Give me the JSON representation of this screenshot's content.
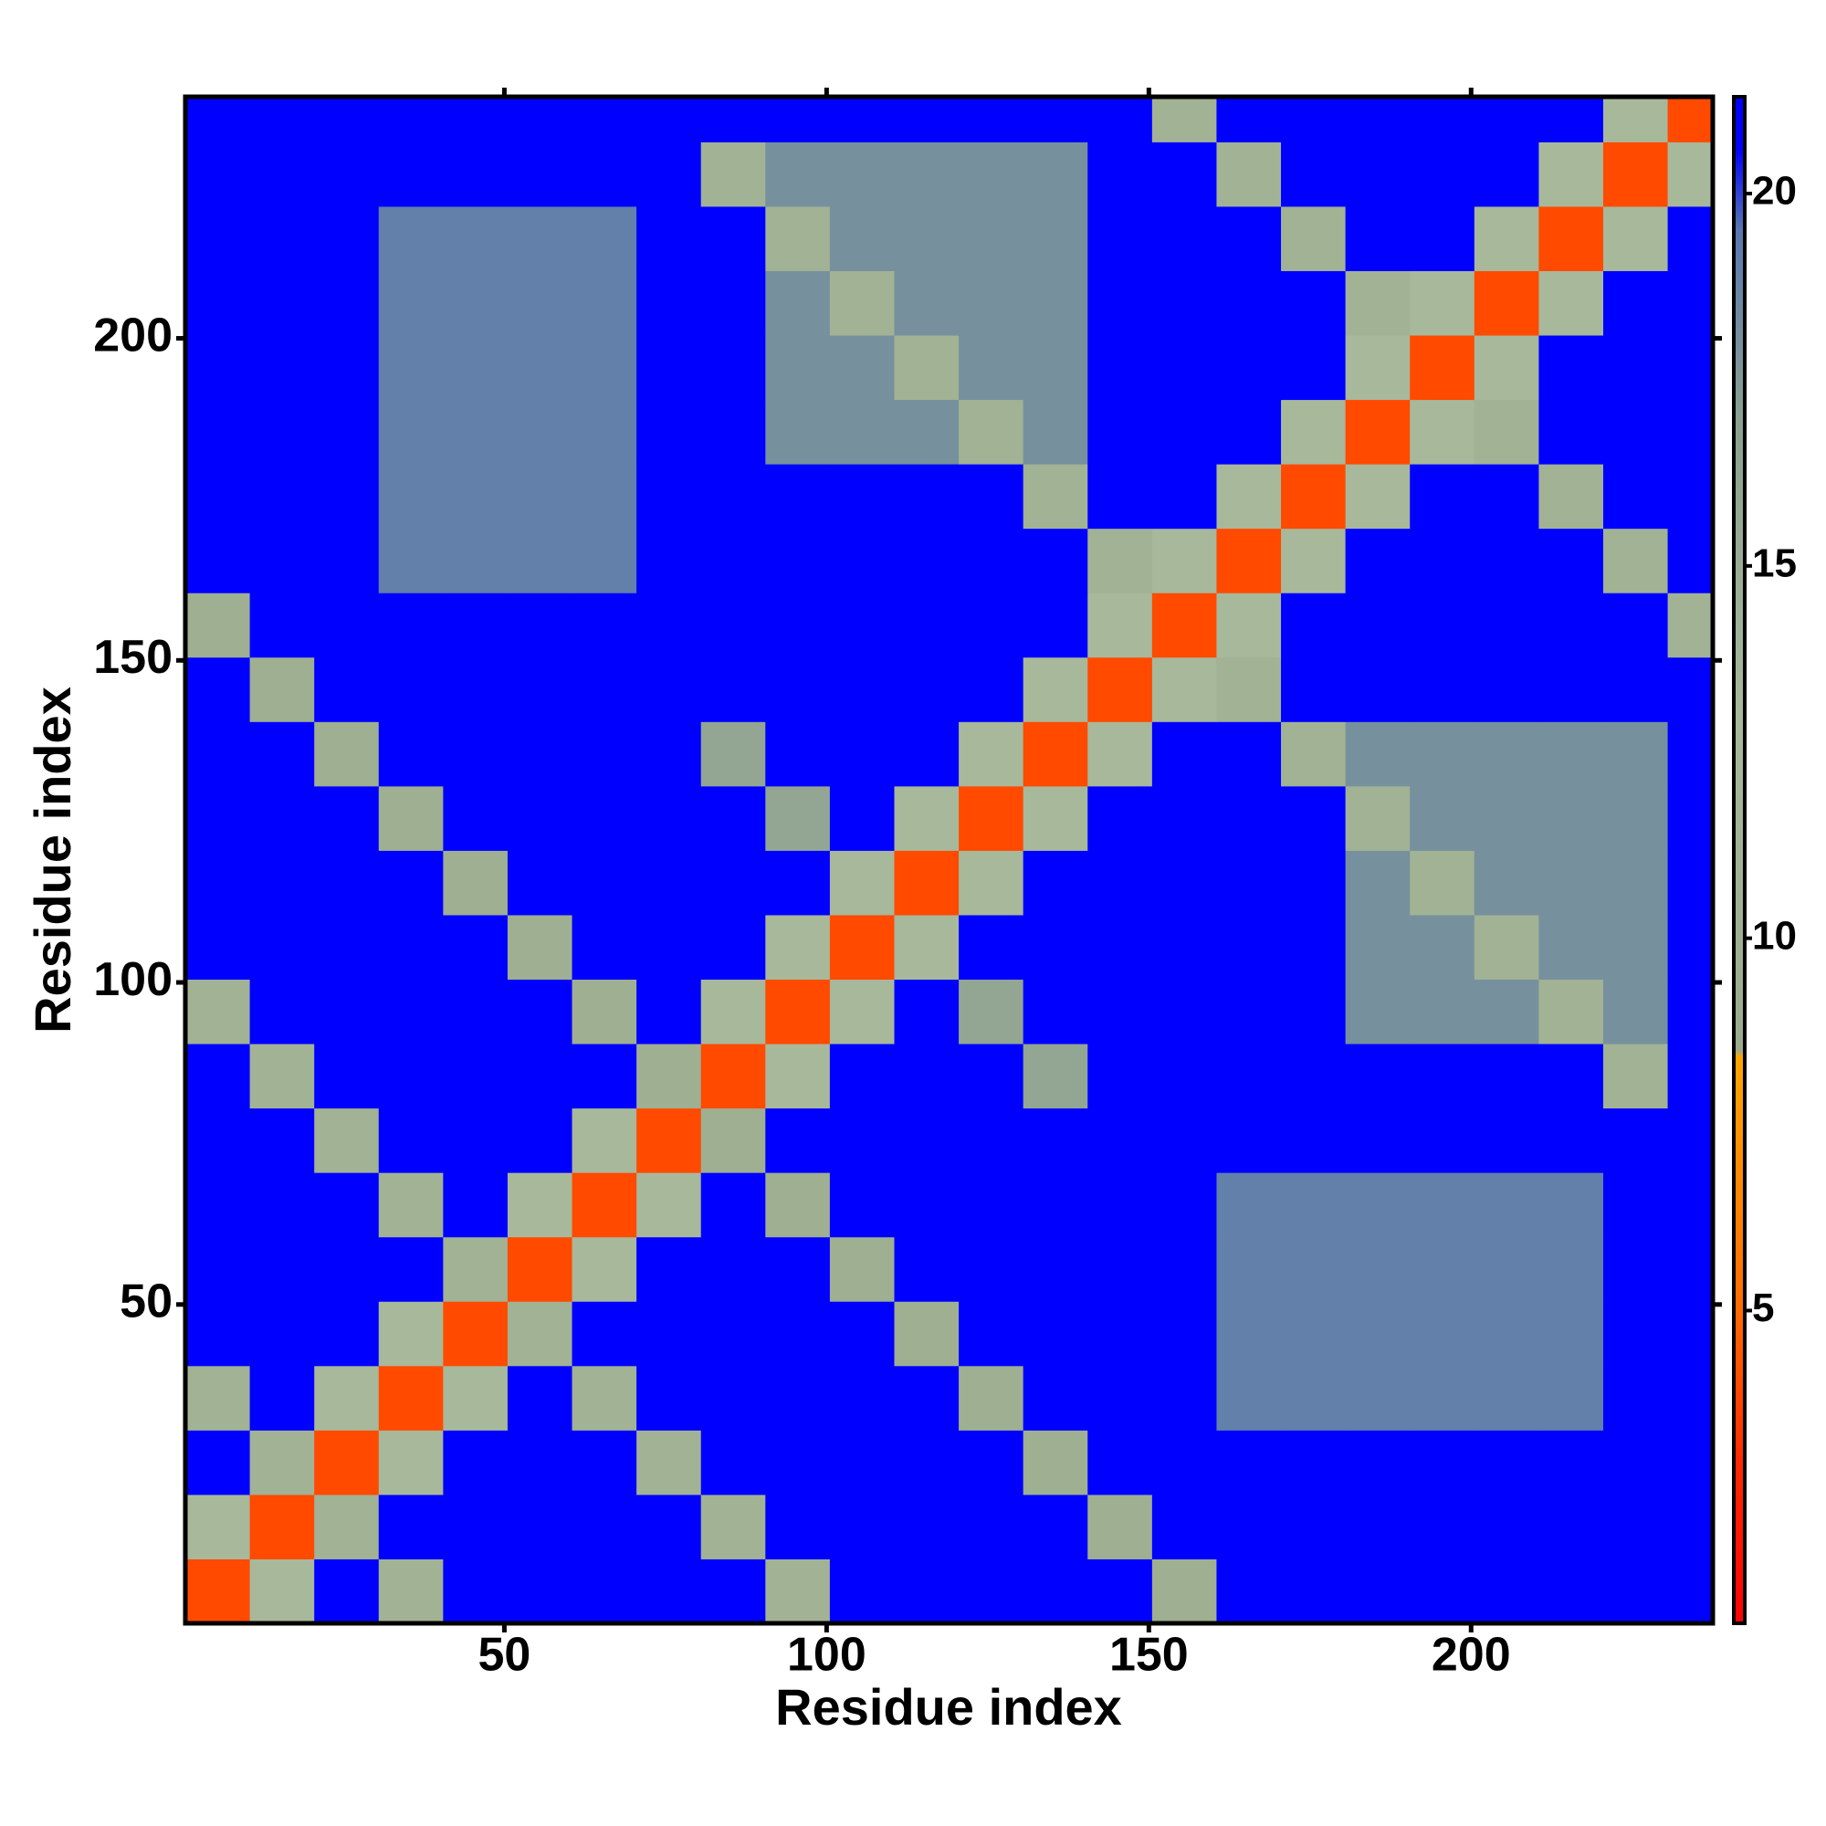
{
  "chart_data": {
    "type": "heatmap",
    "xlabel": "Residue index",
    "ylabel": "Residue index",
    "xlim": [
      0.5,
      237.5
    ],
    "ylim": [
      0.5,
      237.5
    ],
    "xticks": [
      50,
      100,
      150,
      200
    ],
    "yticks": [
      50,
      100,
      150,
      200
    ],
    "x": [
      5.5,
      15.5,
      25.5,
      35.5,
      45.5,
      55.5,
      65.5,
      75.5,
      85.5,
      95.5,
      105.5,
      115.5,
      125.5,
      135.5,
      145.5,
      155.5,
      165.5,
      175.5,
      185.5,
      195.5,
      205.5,
      215.5,
      225.5,
      235.5
    ],
    "y": [
      5.5,
      15.5,
      25.5,
      35.5,
      45.5,
      55.5,
      65.5,
      75.5,
      85.5,
      95.5,
      105.5,
      115.5,
      125.5,
      135.5,
      145.5,
      155.5,
      165.5,
      175.5,
      185.5,
      195.5,
      205.5,
      215.5,
      225.5,
      235.5
    ],
    "z": [
      [
        4,
        13,
        21,
        11,
        21,
        21,
        21,
        21,
        21,
        11,
        21,
        21,
        21,
        21,
        21,
        10,
        21,
        21,
        21,
        21,
        21,
        21,
        21,
        21
      ],
      [
        13,
        4,
        11,
        21,
        21,
        21,
        21,
        21,
        11,
        21,
        21,
        21,
        21,
        21,
        10,
        21,
        21,
        21,
        21,
        21,
        21,
        21,
        21,
        21
      ],
      [
        21,
        11,
        4,
        13,
        21,
        21,
        21,
        11,
        21,
        21,
        21,
        21,
        21,
        10,
        21,
        21,
        21,
        21,
        21,
        21,
        21,
        21,
        21,
        21
      ],
      [
        11,
        21,
        13,
        4,
        13,
        21,
        11,
        21,
        21,
        21,
        21,
        21,
        10,
        21,
        21,
        21,
        19,
        19,
        19,
        19,
        19,
        19,
        21,
        21
      ],
      [
        21,
        21,
        21,
        13,
        4,
        11,
        21,
        21,
        21,
        21,
        21,
        10,
        21,
        21,
        21,
        21,
        19,
        19,
        19,
        19,
        19,
        19,
        21,
        21
      ],
      [
        21,
        21,
        21,
        21,
        11,
        4,
        13,
        21,
        21,
        21,
        10,
        21,
        21,
        21,
        21,
        21,
        19,
        19,
        19,
        19,
        19,
        19,
        21,
        21
      ],
      [
        21,
        21,
        21,
        11,
        21,
        13,
        4,
        13,
        21,
        10,
        21,
        21,
        21,
        21,
        21,
        21,
        19,
        19,
        19,
        19,
        19,
        19,
        21,
        21
      ],
      [
        21,
        21,
        11,
        21,
        21,
        21,
        13,
        4,
        10,
        21,
        21,
        21,
        21,
        21,
        21,
        21,
        21,
        21,
        21,
        21,
        21,
        21,
        21,
        21
      ],
      [
        21,
        11,
        21,
        21,
        21,
        21,
        21,
        10,
        4,
        13,
        21,
        21,
        21,
        16,
        21,
        21,
        21,
        21,
        21,
        21,
        21,
        21,
        11,
        21
      ],
      [
        11,
        21,
        21,
        21,
        21,
        21,
        10,
        21,
        13,
        4,
        13,
        21,
        16,
        21,
        21,
        21,
        21,
        21,
        18,
        18,
        18,
        11,
        18,
        21
      ],
      [
        21,
        21,
        21,
        21,
        21,
        10,
        21,
        21,
        21,
        13,
        4,
        13,
        21,
        21,
        21,
        21,
        21,
        21,
        18,
        18,
        11,
        18,
        18,
        21
      ],
      [
        21,
        21,
        21,
        21,
        10,
        21,
        21,
        21,
        21,
        21,
        13,
        4,
        13,
        21,
        21,
        21,
        21,
        21,
        18,
        11,
        18,
        18,
        18,
        21
      ],
      [
        21,
        21,
        21,
        10,
        21,
        21,
        21,
        21,
        21,
        16,
        21,
        13,
        4,
        13,
        21,
        21,
        21,
        21,
        11,
        18,
        18,
        18,
        18,
        21
      ],
      [
        21,
        21,
        10,
        21,
        21,
        21,
        21,
        21,
        16,
        21,
        21,
        21,
        13,
        4,
        13,
        21,
        21,
        11,
        18,
        18,
        18,
        18,
        18,
        21
      ],
      [
        21,
        10,
        21,
        21,
        21,
        21,
        21,
        21,
        21,
        21,
        21,
        21,
        21,
        13,
        4,
        13,
        11,
        21,
        21,
        21,
        21,
        21,
        21,
        21
      ],
      [
        10,
        21,
        21,
        21,
        21,
        21,
        21,
        21,
        21,
        21,
        21,
        21,
        21,
        21,
        13,
        4,
        13,
        21,
        21,
        21,
        21,
        21,
        21,
        11
      ],
      [
        21,
        21,
        21,
        19,
        19,
        19,
        19,
        21,
        21,
        21,
        21,
        21,
        21,
        21,
        11,
        13,
        4,
        13,
        21,
        21,
        21,
        21,
        11,
        21
      ],
      [
        21,
        21,
        21,
        19,
        19,
        19,
        19,
        21,
        21,
        21,
        21,
        21,
        21,
        11,
        21,
        21,
        13,
        4,
        13,
        21,
        21,
        11,
        21,
        21
      ],
      [
        21,
        21,
        21,
        19,
        19,
        19,
        19,
        21,
        21,
        18,
        18,
        18,
        11,
        18,
        21,
        21,
        21,
        13,
        4,
        13,
        11,
        21,
        21,
        21
      ],
      [
        21,
        21,
        21,
        19,
        19,
        19,
        19,
        21,
        21,
        18,
        18,
        11,
        18,
        18,
        21,
        21,
        21,
        21,
        13,
        4,
        13,
        21,
        21,
        21
      ],
      [
        21,
        21,
        21,
        19,
        19,
        19,
        19,
        21,
        21,
        18,
        11,
        18,
        18,
        18,
        21,
        21,
        21,
        21,
        11,
        13,
        4,
        13,
        21,
        21
      ],
      [
        21,
        21,
        21,
        19,
        19,
        19,
        19,
        21,
        21,
        11,
        18,
        18,
        18,
        18,
        21,
        21,
        21,
        11,
        21,
        21,
        13,
        4,
        13,
        21
      ],
      [
        21,
        21,
        21,
        21,
        21,
        21,
        21,
        21,
        11,
        18,
        18,
        18,
        18,
        18,
        21,
        21,
        11,
        21,
        21,
        21,
        21,
        13,
        4,
        13
      ],
      [
        21,
        21,
        21,
        21,
        21,
        21,
        21,
        21,
        21,
        21,
        21,
        21,
        21,
        21,
        21,
        11,
        21,
        21,
        21,
        21,
        21,
        21,
        13,
        4
      ]
    ],
    "clim": [
      0.8,
      21.3
    ],
    "cticks": [
      5,
      10,
      15,
      20
    ],
    "colorscale": [
      {
        "value": 0.8,
        "color": "#ff0000"
      },
      {
        "value": 3,
        "color": "#ff2a00"
      },
      {
        "value": 5,
        "color": "#ff6a00"
      },
      {
        "value": 8.4,
        "color": "#ffa500"
      },
      {
        "value": 8.5,
        "color": "#9aaa8c"
      },
      {
        "value": 13,
        "color": "#a8b89a"
      },
      {
        "value": 17,
        "color": "#8aa090"
      },
      {
        "value": 19.5,
        "color": "#5878b0"
      },
      {
        "value": 20.6,
        "color": "#0000ff"
      },
      {
        "value": 21.3,
        "color": "#0000ff"
      }
    ]
  }
}
